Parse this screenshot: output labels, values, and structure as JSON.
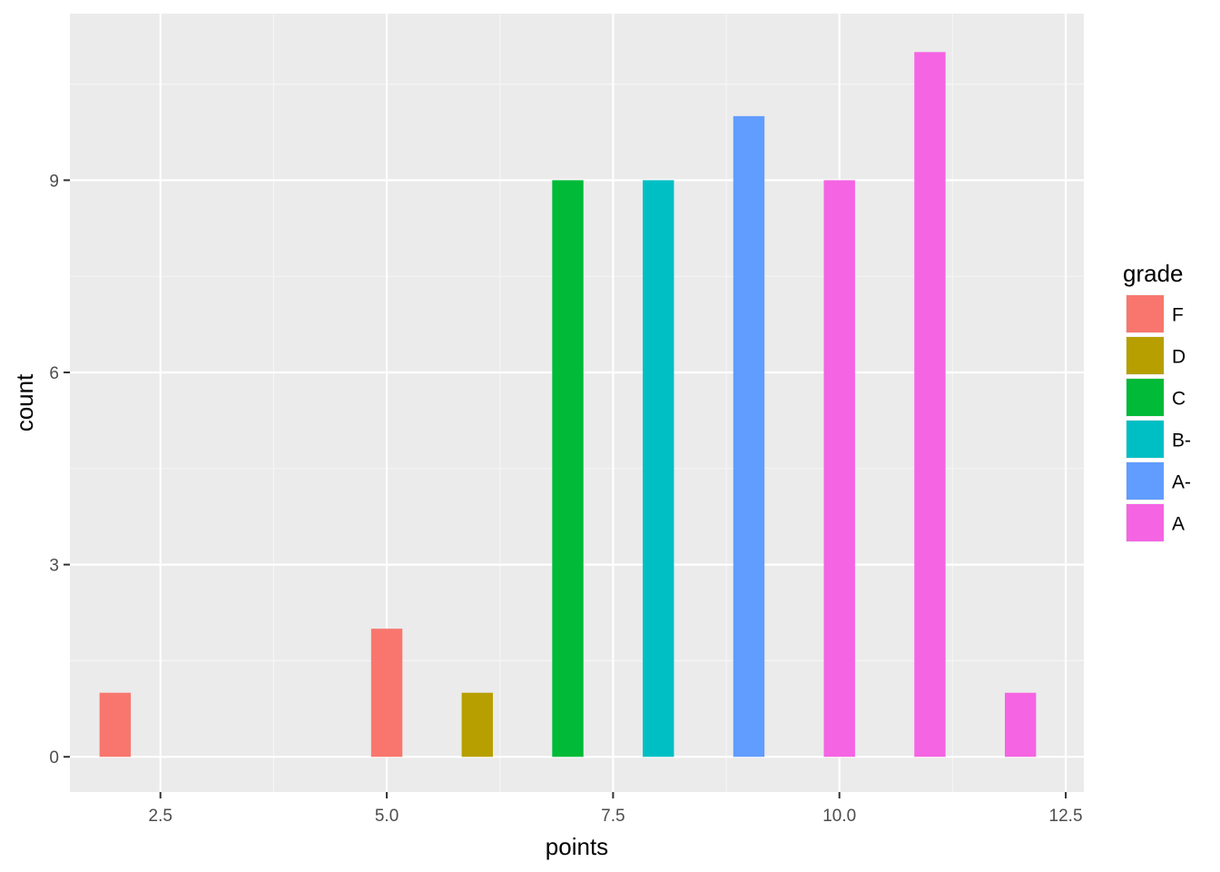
{
  "chart_data": {
    "type": "bar",
    "title": "",
    "xlabel": "points",
    "ylabel": "count",
    "xlim": [
      1.5,
      12.7
    ],
    "ylim": [
      -0.55,
      11.6
    ],
    "x_ticks": [
      {
        "value": 2.5,
        "label": "2.5"
      },
      {
        "value": 5.0,
        "label": "5.0"
      },
      {
        "value": 7.5,
        "label": "7.5"
      },
      {
        "value": 10.0,
        "label": "10.0"
      },
      {
        "value": 12.5,
        "label": "12.5"
      }
    ],
    "x_minor_ticks": [
      3.75,
      6.25,
      8.75,
      11.25
    ],
    "y_ticks": [
      {
        "value": 0,
        "label": "0"
      },
      {
        "value": 3,
        "label": "3"
      },
      {
        "value": 6,
        "label": "6"
      },
      {
        "value": 9,
        "label": "9"
      }
    ],
    "y_minor_ticks": [
      1.5,
      4.5,
      7.5,
      10.5
    ],
    "grid": true,
    "bar_width": 0.345,
    "legend": {
      "title": "grade",
      "position": "right",
      "entries": [
        {
          "label": "F",
          "color": "#F8766D"
        },
        {
          "label": "D",
          "color": "#B79F00"
        },
        {
          "label": "C",
          "color": "#00BA38"
        },
        {
          "label": "B-",
          "color": "#00BFC4"
        },
        {
          "label": "A-",
          "color": "#619CFF"
        },
        {
          "label": "A",
          "color": "#F564E3"
        }
      ]
    },
    "bars": [
      {
        "x": 2.0,
        "count": 1,
        "grade": "F"
      },
      {
        "x": 5.0,
        "count": 2,
        "grade": "F"
      },
      {
        "x": 6.0,
        "count": 1,
        "grade": "D"
      },
      {
        "x": 7.0,
        "count": 9,
        "grade": "C"
      },
      {
        "x": 8.0,
        "count": 9,
        "grade": "B-"
      },
      {
        "x": 9.0,
        "count": 10,
        "grade": "A-"
      },
      {
        "x": 10.0,
        "count": 9,
        "grade": "A"
      },
      {
        "x": 11.0,
        "count": 11,
        "grade": "A"
      },
      {
        "x": 12.0,
        "count": 1,
        "grade": "A"
      }
    ]
  },
  "colors": {
    "panel_background": "#EBEBEB",
    "grid_major": "#FFFFFF",
    "grid_minor": "#F5F5F5",
    "tick_mark": "#333333"
  }
}
